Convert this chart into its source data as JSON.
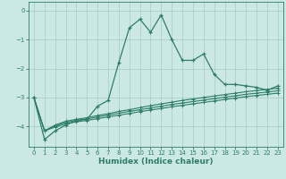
{
  "xlabel": "Humidex (Indice chaleur)",
  "x": [
    0,
    1,
    2,
    3,
    4,
    5,
    6,
    7,
    8,
    9,
    10,
    11,
    12,
    13,
    14,
    15,
    16,
    17,
    18,
    19,
    20,
    21,
    22,
    23
  ],
  "line1_y": [
    -3.0,
    -4.45,
    -4.15,
    -3.95,
    -3.8,
    -3.75,
    -3.3,
    -3.1,
    -1.8,
    -0.6,
    -0.3,
    -0.75,
    -0.15,
    -1.0,
    -1.72,
    -1.72,
    -1.5,
    -2.2,
    -2.55,
    -2.55,
    -2.6,
    -2.65,
    -2.75,
    -2.6
  ],
  "line2_y": [
    -3.0,
    -4.15,
    -3.95,
    -3.82,
    -3.75,
    -3.7,
    -3.62,
    -3.56,
    -3.48,
    -3.42,
    -3.35,
    -3.28,
    -3.22,
    -3.16,
    -3.1,
    -3.05,
    -3.0,
    -2.95,
    -2.9,
    -2.85,
    -2.8,
    -2.76,
    -2.72,
    -2.68
  ],
  "line3_y": [
    -3.0,
    -4.15,
    -3.98,
    -3.86,
    -3.79,
    -3.74,
    -3.67,
    -3.61,
    -3.54,
    -3.48,
    -3.42,
    -3.36,
    -3.3,
    -3.24,
    -3.19,
    -3.14,
    -3.09,
    -3.04,
    -2.99,
    -2.94,
    -2.89,
    -2.85,
    -2.81,
    -2.77
  ],
  "line4_y": [
    -3.0,
    -4.15,
    -4.02,
    -3.91,
    -3.84,
    -3.79,
    -3.73,
    -3.67,
    -3.61,
    -3.55,
    -3.49,
    -3.43,
    -3.38,
    -3.32,
    -3.27,
    -3.22,
    -3.17,
    -3.12,
    -3.07,
    -3.02,
    -2.97,
    -2.93,
    -2.89,
    -2.85
  ],
  "line_color": "#2d7d6b",
  "bg_color": "#cce8e5",
  "grid_color": "#aacfcc",
  "ylim": [
    -4.7,
    0.3
  ],
  "xlim": [
    -0.5,
    23.5
  ],
  "yticks": [
    0,
    -1,
    -2,
    -3,
    -4
  ],
  "xticks": [
    0,
    1,
    2,
    3,
    4,
    5,
    6,
    7,
    8,
    9,
    10,
    11,
    12,
    13,
    14,
    15,
    16,
    17,
    18,
    19,
    20,
    21,
    22,
    23
  ]
}
